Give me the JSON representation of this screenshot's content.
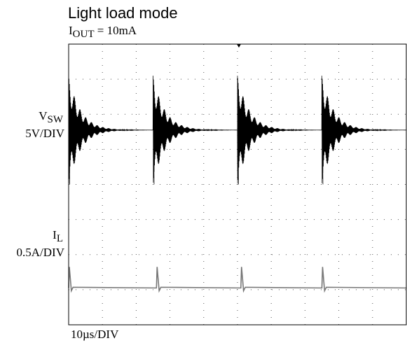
{
  "chart_data": {
    "type": "line",
    "title": "Light load mode",
    "subtitle_main": "I",
    "subtitle_sub": "OUT",
    "subtitle_rest": " = 10mA",
    "time_scale": "10µs/DIV",
    "grid": true,
    "divisions": {
      "x": 10,
      "y": 8
    },
    "series": [
      {
        "label_main": "V",
        "label_sub": "SW",
        "scale": "5V/DIV",
        "color": "#000000",
        "pulse_times_div": [
          0.0,
          2.5,
          5.0,
          7.5
        ],
        "settled_level_div": 5.55,
        "peak_div": 7.1,
        "trough_div": 4.0,
        "ringing_decay_div": 0.35
      },
      {
        "label_main": "I",
        "label_sub": "L",
        "scale": "0.5A/DIV",
        "color": "#777777",
        "pulse_times_div": [
          0.0,
          2.6,
          5.1,
          7.5
        ],
        "baseline_div": 1.05,
        "peak_div": 1.65
      }
    ]
  }
}
